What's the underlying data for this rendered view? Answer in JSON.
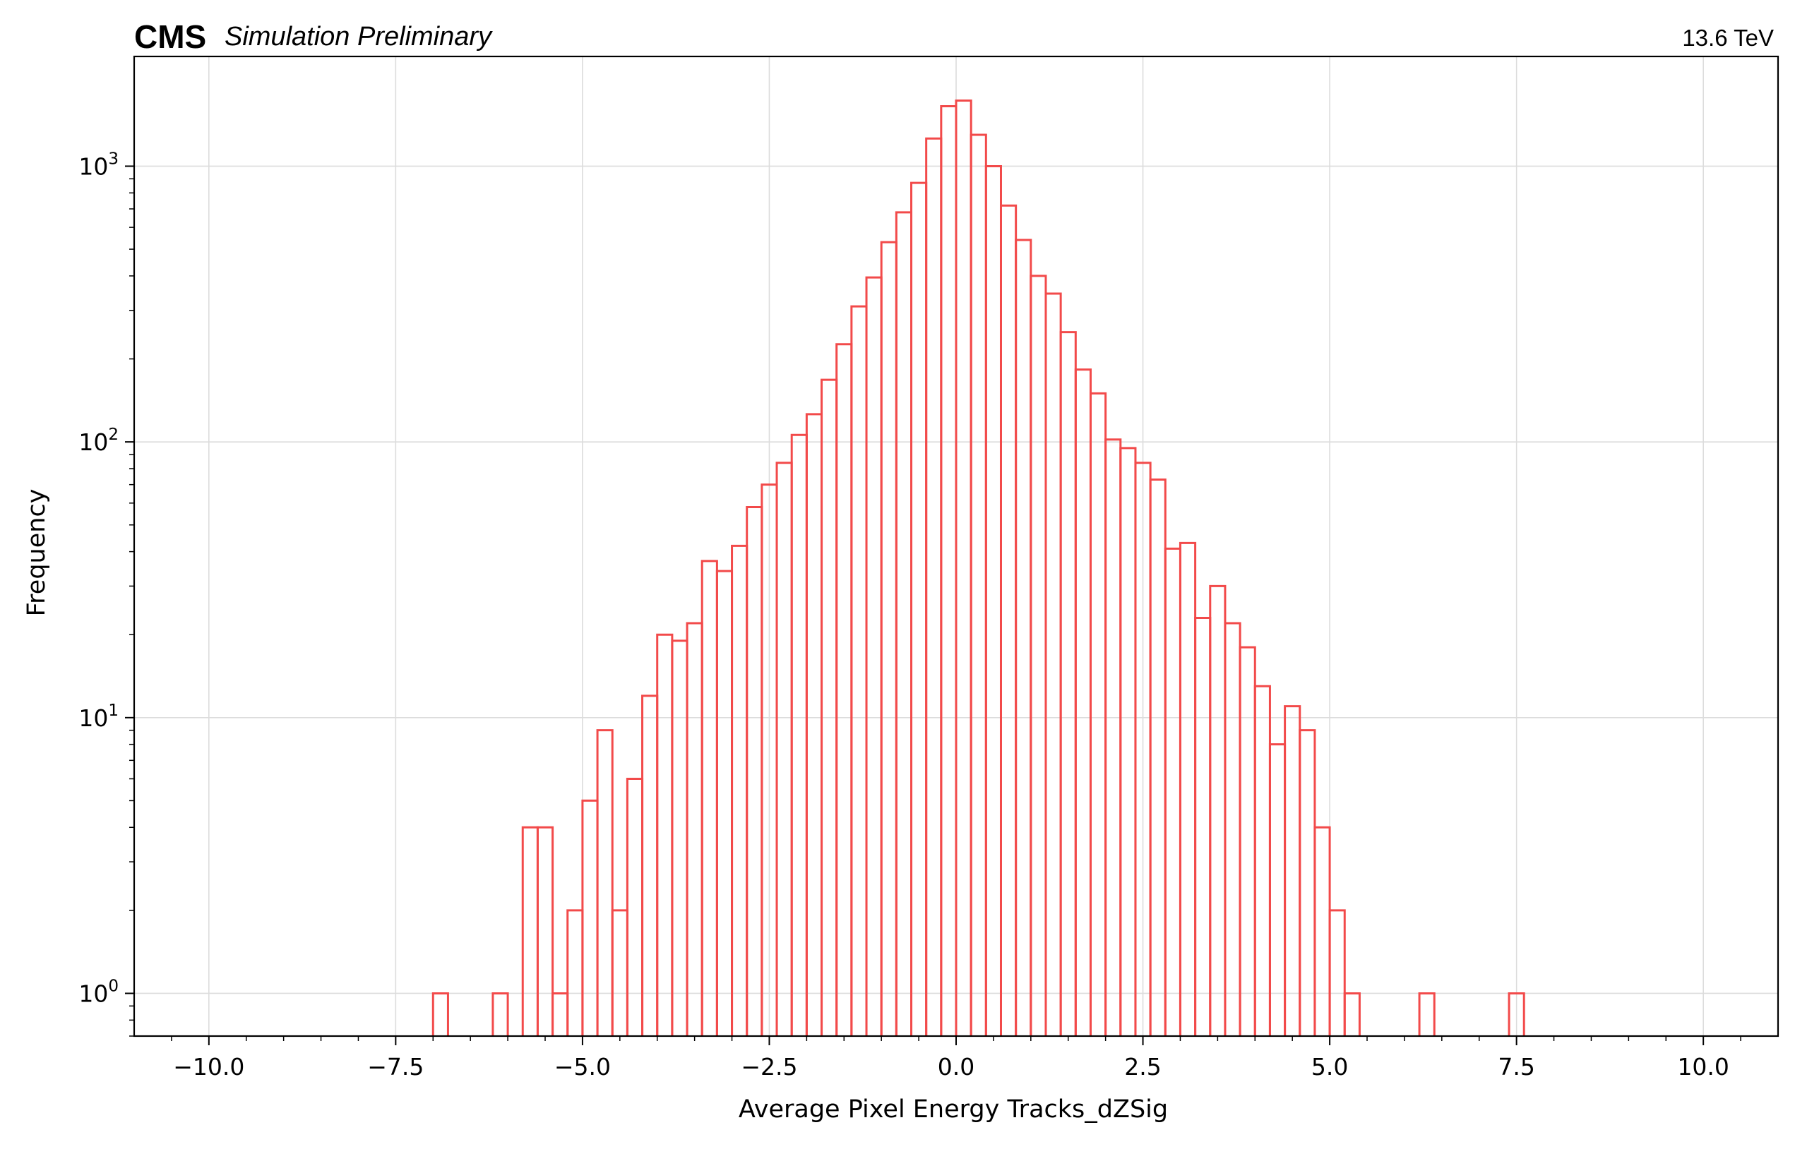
{
  "header": {
    "experiment": "CMS",
    "status": "Simulation Preliminary",
    "energy": "13.6 TeV"
  },
  "chart_data": {
    "type": "histogram",
    "xlabel": "Average Pixel Energy Tracks_dZSig",
    "ylabel": "Frequency",
    "xlim": [
      -11.0,
      11.0
    ],
    "ylim": [
      0.7,
      2500
    ],
    "yscale": "log",
    "grid": true,
    "color": "#f24a4a",
    "x_ticks": [
      -10.0,
      -7.5,
      -5.0,
      -2.5,
      0.0,
      2.5,
      5.0,
      7.5,
      10.0
    ],
    "x_tick_labels": [
      "−10.0",
      "−7.5",
      "−5.0",
      "−2.5",
      "0.0",
      "2.5",
      "5.0",
      "7.5",
      "10.0"
    ],
    "y_ticks": [
      1,
      10,
      100,
      1000
    ],
    "y_tick_labels": [
      {
        "base": "10",
        "exp": "0"
      },
      {
        "base": "10",
        "exp": "1"
      },
      {
        "base": "10",
        "exp": "2"
      },
      {
        "base": "10",
        "exp": "3"
      }
    ],
    "bins": [
      {
        "x0": -7.0,
        "x1": -6.8,
        "count": 1
      },
      {
        "x0": -6.8,
        "x1": -6.6,
        "count": 0
      },
      {
        "x0": -6.6,
        "x1": -6.4,
        "count": 0
      },
      {
        "x0": -6.4,
        "x1": -6.2,
        "count": 0
      },
      {
        "x0": -6.2,
        "x1": -6.0,
        "count": 1
      },
      {
        "x0": -6.0,
        "x1": -5.8,
        "count": 0
      },
      {
        "x0": -5.8,
        "x1": -5.6,
        "count": 4
      },
      {
        "x0": -5.6,
        "x1": -5.4,
        "count": 4
      },
      {
        "x0": -5.4,
        "x1": -5.2,
        "count": 1
      },
      {
        "x0": -5.2,
        "x1": -5.0,
        "count": 2
      },
      {
        "x0": -5.0,
        "x1": -4.8,
        "count": 5
      },
      {
        "x0": -4.8,
        "x1": -4.6,
        "count": 9
      },
      {
        "x0": -4.6,
        "x1": -4.4,
        "count": 2
      },
      {
        "x0": -4.4,
        "x1": -4.2,
        "count": 6
      },
      {
        "x0": -4.2,
        "x1": -4.0,
        "count": 12
      },
      {
        "x0": -4.0,
        "x1": -3.8,
        "count": 20
      },
      {
        "x0": -3.8,
        "x1": -3.6,
        "count": 19
      },
      {
        "x0": -3.6,
        "x1": -3.4,
        "count": 22
      },
      {
        "x0": -3.4,
        "x1": -3.2,
        "count": 37
      },
      {
        "x0": -3.2,
        "x1": -3.0,
        "count": 34
      },
      {
        "x0": -3.0,
        "x1": -2.8,
        "count": 42
      },
      {
        "x0": -2.8,
        "x1": -2.6,
        "count": 58
      },
      {
        "x0": -2.6,
        "x1": -2.4,
        "count": 70
      },
      {
        "x0": -2.4,
        "x1": -2.2,
        "count": 84
      },
      {
        "x0": -2.2,
        "x1": -2.0,
        "count": 106
      },
      {
        "x0": -2.0,
        "x1": -1.8,
        "count": 126
      },
      {
        "x0": -1.8,
        "x1": -1.6,
        "count": 168
      },
      {
        "x0": -1.6,
        "x1": -1.4,
        "count": 226
      },
      {
        "x0": -1.4,
        "x1": -1.2,
        "count": 310
      },
      {
        "x0": -1.2,
        "x1": -1.0,
        "count": 395
      },
      {
        "x0": -1.0,
        "x1": -0.8,
        "count": 530
      },
      {
        "x0": -0.8,
        "x1": -0.6,
        "count": 680
      },
      {
        "x0": -0.6,
        "x1": -0.4,
        "count": 870
      },
      {
        "x0": -0.4,
        "x1": -0.2,
        "count": 1260
      },
      {
        "x0": -0.2,
        "x1": 0.0,
        "count": 1650
      },
      {
        "x0": 0.0,
        "x1": 0.2,
        "count": 1730
      },
      {
        "x0": 0.2,
        "x1": 0.4,
        "count": 1300
      },
      {
        "x0": 0.4,
        "x1": 0.6,
        "count": 1000
      },
      {
        "x0": 0.6,
        "x1": 0.8,
        "count": 720
      },
      {
        "x0": 0.8,
        "x1": 1.0,
        "count": 540
      },
      {
        "x0": 1.0,
        "x1": 1.2,
        "count": 400
      },
      {
        "x0": 1.2,
        "x1": 1.4,
        "count": 345
      },
      {
        "x0": 1.4,
        "x1": 1.6,
        "count": 250
      },
      {
        "x0": 1.6,
        "x1": 1.8,
        "count": 183
      },
      {
        "x0": 1.8,
        "x1": 2.0,
        "count": 150
      },
      {
        "x0": 2.0,
        "x1": 2.2,
        "count": 102
      },
      {
        "x0": 2.2,
        "x1": 2.4,
        "count": 95
      },
      {
        "x0": 2.4,
        "x1": 2.6,
        "count": 84
      },
      {
        "x0": 2.6,
        "x1": 2.8,
        "count": 73
      },
      {
        "x0": 2.8,
        "x1": 3.0,
        "count": 41
      },
      {
        "x0": 3.0,
        "x1": 3.2,
        "count": 43
      },
      {
        "x0": 3.2,
        "x1": 3.4,
        "count": 23
      },
      {
        "x0": 3.4,
        "x1": 3.6,
        "count": 30
      },
      {
        "x0": 3.6,
        "x1": 3.8,
        "count": 22
      },
      {
        "x0": 3.8,
        "x1": 4.0,
        "count": 18
      },
      {
        "x0": 4.0,
        "x1": 4.2,
        "count": 13
      },
      {
        "x0": 4.2,
        "x1": 4.4,
        "count": 8
      },
      {
        "x0": 4.4,
        "x1": 4.6,
        "count": 11
      },
      {
        "x0": 4.6,
        "x1": 4.8,
        "count": 9
      },
      {
        "x0": 4.8,
        "x1": 5.0,
        "count": 4
      },
      {
        "x0": 5.0,
        "x1": 5.2,
        "count": 2
      },
      {
        "x0": 5.2,
        "x1": 5.4,
        "count": 1
      },
      {
        "x0": 6.2,
        "x1": 6.4,
        "count": 1
      },
      {
        "x0": 7.4,
        "x1": 7.6,
        "count": 1
      }
    ]
  }
}
